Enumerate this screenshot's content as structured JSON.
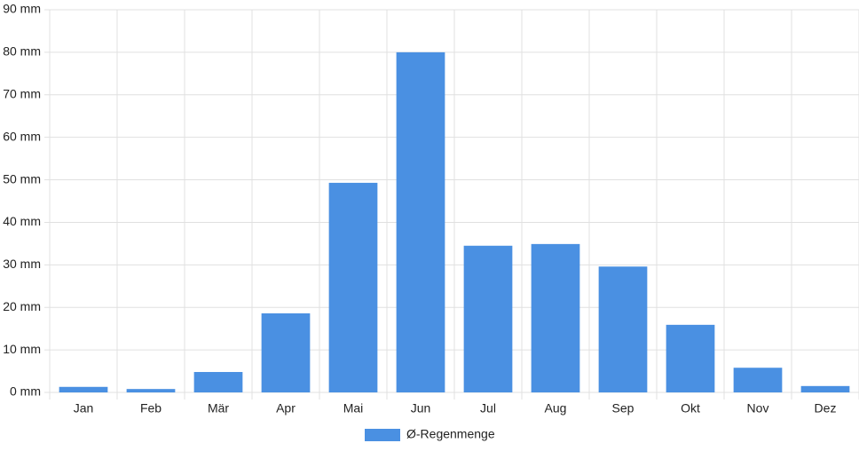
{
  "chart_data": {
    "type": "bar",
    "categories": [
      "Jan",
      "Feb",
      "Mär",
      "Apr",
      "Mai",
      "Jun",
      "Jul",
      "Aug",
      "Sep",
      "Okt",
      "Nov",
      "Dez"
    ],
    "series": [
      {
        "name": "Ø-Regenmenge",
        "color": "#4a90e2",
        "values": [
          1.3,
          0.8,
          4.8,
          18.6,
          49.3,
          80,
          34.5,
          34.9,
          29.6,
          15.9,
          5.8,
          1.5
        ]
      }
    ],
    "ylim": [
      0,
      90
    ],
    "yticks": [
      {
        "value": 0,
        "label": "0 mm"
      },
      {
        "value": 10,
        "label": "10 mm"
      },
      {
        "value": 20,
        "label": "20 mm"
      },
      {
        "value": 30,
        "label": "30 mm"
      },
      {
        "value": 40,
        "label": "40 mm"
      },
      {
        "value": 50,
        "label": "50 mm"
      },
      {
        "value": 60,
        "label": "60 mm"
      },
      {
        "value": 70,
        "label": "70 mm"
      },
      {
        "value": 80,
        "label": "80 mm"
      },
      {
        "value": 90,
        "label": "90 mm"
      }
    ],
    "grid": true,
    "legend": "bottom"
  }
}
